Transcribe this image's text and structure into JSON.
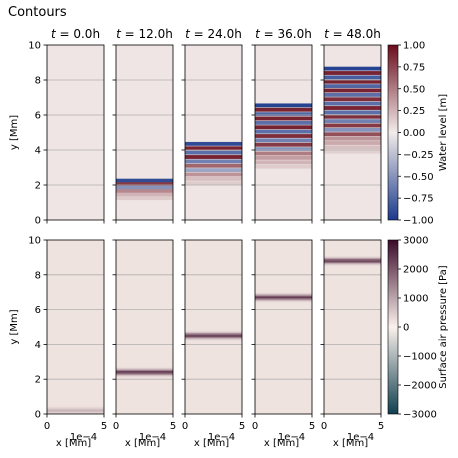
{
  "figure_title": "Contours",
  "chart_data": [
    {
      "type": "heatmap",
      "name": "water-level",
      "panel_titles": [
        "$t = 0.0$h",
        "$t = 12.0$h",
        "$t = 24.0$h",
        "$t = 36.0$h",
        "$t = 48.0$h"
      ],
      "times_h": [
        0.0,
        12.0,
        24.0,
        36.0,
        48.0
      ],
      "xlabel": "x [Mm]",
      "x_offset_label": "1e-4",
      "ylabel": "y [Mm]",
      "xlim": [
        0,
        5
      ],
      "ylim": [
        0,
        10
      ],
      "xticks": [
        0,
        5
      ],
      "yticks": [
        0,
        2,
        4,
        6,
        8,
        10
      ],
      "grid": "horizontal",
      "colorbar": {
        "label": "Water level [m]",
        "colormap": "diverging blue-white-red",
        "range": [
          -1.0,
          1.0
        ],
        "ticks": [
          "1.00",
          "0.75",
          "0.50",
          "0.25",
          "0.00",
          "−0.25",
          "−0.50",
          "−0.75",
          "−1.00"
        ],
        "colors": {
          "neg": "#1b3a8c",
          "zero": "#f2ecea",
          "pos": "#6a0d1c"
        }
      },
      "front_y_Mm": [
        0.0,
        2.4,
        4.5,
        6.7,
        8.8
      ],
      "wave_bands": [
        {
          "y": []
        },
        {
          "y": [
            2.25,
            2.05,
            1.85,
            1.65,
            1.45,
            1.25
          ],
          "v": [
            -0.9,
            0.8,
            -0.5,
            0.45,
            0.25,
            0.15
          ]
        },
        {
          "y": [
            4.35,
            4.1,
            3.85,
            3.6,
            3.35,
            3.1,
            2.85,
            2.6,
            2.35,
            2.1
          ],
          "v": [
            -0.9,
            0.9,
            -0.7,
            0.9,
            -0.6,
            0.6,
            -0.4,
            0.4,
            0.2,
            0.15
          ]
        },
        {
          "y": [
            6.55,
            6.3,
            6.05,
            5.8,
            5.55,
            5.3,
            5.05,
            4.8,
            4.55,
            4.3,
            4.05,
            3.8,
            3.55,
            3.3,
            3.05
          ],
          "v": [
            -0.95,
            0.9,
            -0.75,
            0.9,
            -0.7,
            0.9,
            -0.7,
            0.85,
            -0.6,
            0.8,
            -0.5,
            0.5,
            0.35,
            0.25,
            0.15
          ]
        },
        {
          "y": [
            8.65,
            8.4,
            8.15,
            7.9,
            7.65,
            7.4,
            7.15,
            6.9,
            6.65,
            6.4,
            6.15,
            5.9,
            5.65,
            5.4,
            5.15,
            4.9,
            4.65,
            4.4,
            4.15,
            3.9
          ],
          "v": [
            -0.95,
            0.9,
            -0.8,
            0.9,
            -0.75,
            0.9,
            -0.7,
            0.85,
            -0.7,
            0.9,
            -0.7,
            0.85,
            -0.6,
            0.8,
            -0.5,
            0.7,
            0.4,
            0.3,
            0.2,
            0.12
          ]
        }
      ]
    },
    {
      "type": "heatmap",
      "name": "surface-air-pressure",
      "xlabel": "x [Mm]",
      "x_offset_label": "1e-4",
      "ylabel": "y [Mm]",
      "xlim": [
        0,
        5
      ],
      "ylim": [
        0,
        10
      ],
      "xticks": [
        0,
        5
      ],
      "yticks": [
        0,
        2,
        4,
        6,
        8,
        10
      ],
      "grid": "horizontal",
      "colorbar": {
        "label": "Surface air pressure [Pa]",
        "colormap": "diverging teal-white-maroon",
        "range": [
          -3000,
          3000
        ],
        "ticks": [
          "3000",
          "2000",
          "1000",
          "0",
          "−1000",
          "−2000",
          "−3000"
        ],
        "colors": {
          "neg": "#0f3f4f",
          "zero": "#fbf1ec",
          "pos": "#3b0b2a"
        }
      },
      "band_center_y_Mm": [
        0.2,
        2.4,
        4.5,
        6.7,
        8.8
      ],
      "band_peak_Pa": [
        800,
        2500,
        2500,
        2500,
        2500
      ],
      "band_halfwidth_Mm": 0.3
    }
  ]
}
